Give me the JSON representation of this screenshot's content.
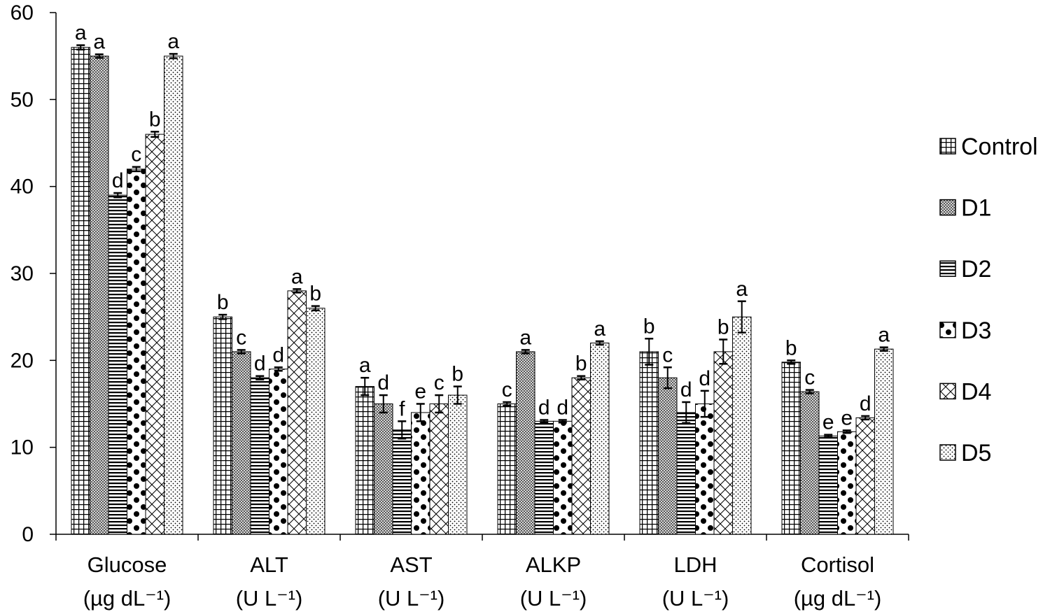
{
  "chart_data": {
    "type": "bar",
    "categories": [
      {
        "line1": "Glucose",
        "line2": "(µg dL⁻¹)"
      },
      {
        "line1": "ALT",
        "line2": "(U L⁻¹)"
      },
      {
        "line1": "AST",
        "line2": "(U L⁻¹)"
      },
      {
        "line1": "ALKP",
        "line2": "(U L⁻¹)"
      },
      {
        "line1": "LDH",
        "line2": "(U L⁻¹)"
      },
      {
        "line1": "Cortisol",
        "line2": "(µg dL⁻¹)"
      }
    ],
    "series": [
      {
        "name": "Control",
        "pattern": "grid",
        "values": [
          56,
          25,
          17,
          15,
          21,
          19.8
        ],
        "errors": [
          0.25,
          0.25,
          1.0,
          0.2,
          1.5,
          0.2
        ],
        "letters": [
          "a",
          "b",
          "a",
          "c",
          "b",
          "b"
        ]
      },
      {
        "name": "D1",
        "pattern": "dense",
        "values": [
          55,
          21,
          15,
          21,
          18,
          16.4
        ],
        "errors": [
          0.2,
          0.2,
          1.0,
          0.2,
          1.2,
          0.2
        ],
        "letters": [
          "a",
          "c",
          "d",
          "a",
          "c",
          "c"
        ]
      },
      {
        "name": "D2",
        "pattern": "hlines",
        "values": [
          39,
          18,
          12,
          13,
          14,
          11.3
        ],
        "errors": [
          0.25,
          0.2,
          1.0,
          0.15,
          1.2,
          0.15
        ],
        "letters": [
          "d",
          "d",
          "f",
          "d",
          "d",
          "e"
        ]
      },
      {
        "name": "D3",
        "pattern": "dots",
        "values": [
          42,
          19,
          14,
          13,
          15,
          11.8
        ],
        "errors": [
          0.25,
          0.2,
          1.0,
          0.15,
          1.5,
          0.15
        ],
        "letters": [
          "c",
          "d",
          "e",
          "d",
          "d",
          "e"
        ]
      },
      {
        "name": "D4",
        "pattern": "cross",
        "values": [
          46,
          28,
          15,
          18,
          21,
          13.4
        ],
        "errors": [
          0.3,
          0.2,
          1.0,
          0.2,
          1.4,
          0.2
        ],
        "letters": [
          "b",
          "a",
          "c",
          "b",
          "b",
          "d"
        ]
      },
      {
        "name": "D5",
        "pattern": "stipple",
        "values": [
          55,
          26,
          16,
          22,
          25,
          21.3
        ],
        "errors": [
          0.25,
          0.25,
          1.0,
          0.2,
          1.8,
          0.2
        ],
        "letters": [
          "a",
          "b",
          "b",
          "a",
          "a",
          "a"
        ]
      }
    ],
    "yticks": [
      0,
      10,
      20,
      30,
      40,
      50,
      60
    ],
    "ylim": [
      0,
      60
    ],
    "grid": false,
    "legend_position": "right"
  }
}
